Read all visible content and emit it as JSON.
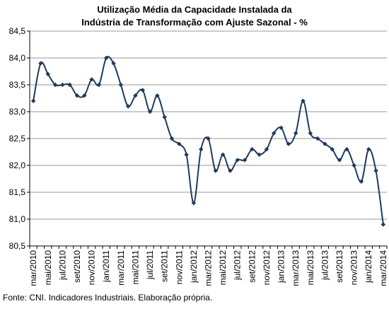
{
  "chart_data": {
    "type": "line",
    "title_lines": [
      "Utilização Média da Capacidade Instalada da",
      "Indústria de Transformação com Ajuste Sazonal - %"
    ],
    "source": "Fonte: CNI. Indicadores Industriais. Elaboração própria.",
    "xlabel": "",
    "ylabel": "",
    "ylim": [
      80.5,
      84.5
    ],
    "yticks": [
      "84,5",
      "84,0",
      "83,5",
      "83,0",
      "82,5",
      "82,0",
      "81,5",
      "81,0",
      "80,5"
    ],
    "ytick_values": [
      84.5,
      84.0,
      83.5,
      83.0,
      82.5,
      82.0,
      81.5,
      81.0,
      80.5
    ],
    "grid": true,
    "line_color": "#1f3b5c",
    "x": [
      "mar/2010",
      "abr/2010",
      "mai/2010",
      "jun/2010",
      "jul/2010",
      "ago/2010",
      "set/2010",
      "out/2010",
      "nov/2010",
      "dez/2010",
      "jan/2011",
      "fev/2011",
      "mar/2011",
      "abr/2011",
      "mai/2011",
      "jun/2011",
      "jul/2011",
      "ago/2011",
      "set/2011",
      "out/2011",
      "nov/2011",
      "dez/2011",
      "jan/2012",
      "fev/2012",
      "mar/2012",
      "abr/2012",
      "mai/2012",
      "jun/2012",
      "jul/2012",
      "ago/2012",
      "set/2012",
      "out/2012",
      "nov/2012",
      "dez/2012",
      "jan/2013",
      "fev/2013",
      "mar/2013",
      "abr/2013",
      "mai/2013",
      "jun/2013",
      "jul/2013",
      "ago/2013",
      "set/2013",
      "out/2013",
      "nov/2013",
      "dez/2013",
      "jan/2014",
      "fev/2014",
      "mar/2014"
    ],
    "xtick_labels": [
      "mar/2010",
      "mai/2010",
      "jul/2010",
      "set/2010",
      "nov/2010",
      "jan/2011",
      "mar/2011",
      "mai/2011",
      "jul/2011",
      "set/2011",
      "nov/2011",
      "jan/2012",
      "mar/2012",
      "mai/2012",
      "jul/2012",
      "set/2012",
      "nov/2012",
      "jan/2013",
      "mar/2013",
      "mai/2013",
      "jul/2013",
      "set/2013",
      "nov/2013",
      "jan/2014",
      "mar/2014"
    ],
    "series": [
      {
        "values": [
          83.2,
          83.9,
          83.7,
          83.5,
          83.5,
          83.5,
          83.3,
          83.3,
          83.6,
          83.5,
          84.0,
          83.9,
          83.5,
          83.1,
          83.3,
          83.4,
          83.0,
          83.3,
          82.9,
          82.5,
          82.4,
          82.2,
          81.3,
          82.3,
          82.5,
          81.9,
          82.2,
          81.9,
          82.1,
          82.1,
          82.3,
          82.2,
          82.3,
          82.6,
          82.7,
          82.4,
          82.6,
          83.2,
          82.6,
          82.5,
          82.4,
          82.3,
          82.1,
          82.3,
          82.0,
          81.7,
          82.3,
          81.9,
          80.9
        ]
      }
    ]
  }
}
